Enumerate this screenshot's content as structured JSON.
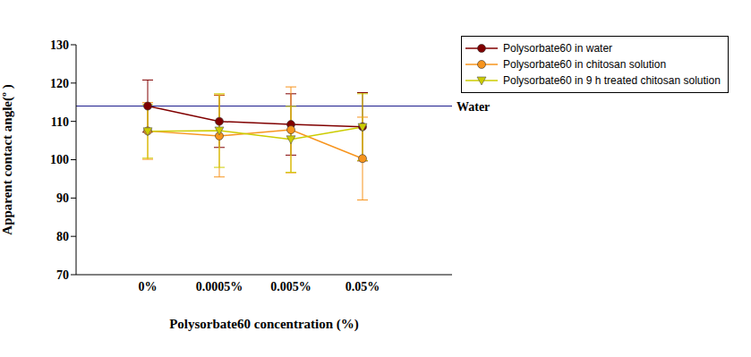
{
  "chart_data": {
    "type": "line",
    "x_label": "Polysorbate60 concentration (%)",
    "y_label": "Apparent contact angle(º )",
    "categories": [
      "0%",
      "0.0005%",
      "0.005%",
      "0.05%"
    ],
    "ylim": [
      70,
      130
    ],
    "yticks": [
      70,
      80,
      90,
      100,
      110,
      120,
      130
    ],
    "grid": false,
    "legend": "right",
    "reference_line": {
      "label": "Water",
      "value": 114
    },
    "series": [
      {
        "name": "Polysorbate60 in water",
        "color": "#800000",
        "marker": "circle",
        "values": [
          114,
          110,
          109.2,
          108.6
        ],
        "error": [
          6.8,
          6.8,
          8,
          8.9
        ]
      },
      {
        "name": "Polysorbate60 in chitosan solution",
        "color": "#f7941d",
        "marker": "circle",
        "values": [
          107.5,
          106.2,
          107.8,
          100.3
        ],
        "error": [
          7.4,
          10.7,
          11.2,
          10.8
        ]
      },
      {
        "name": "Polysorbate60 in 9 h treated chitosan solution",
        "color": "#cccc00",
        "marker": "triangle",
        "values": [
          107.4,
          107.6,
          105.3,
          108.5
        ],
        "error": [
          7,
          9.6,
          8.6,
          8.7
        ]
      }
    ]
  }
}
